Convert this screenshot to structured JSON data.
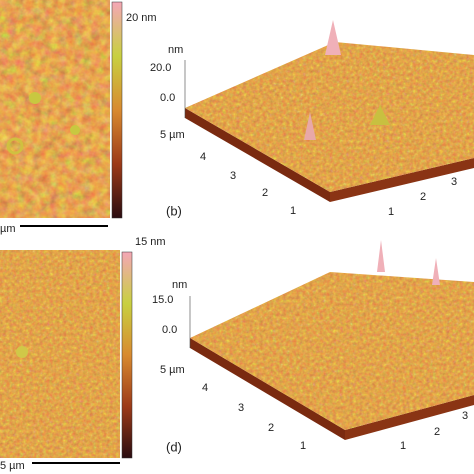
{
  "panels": [
    {
      "colorbar_label": "20 nm",
      "scale_bar_label": "µm",
      "z_unit": "nm",
      "z_ticks": [
        "20.0",
        "0.0"
      ],
      "y_axis_labels": [
        "5 µm",
        "4",
        "3",
        "2",
        "1"
      ],
      "x_axis_labels": [
        "1",
        "2",
        "3"
      ],
      "panel_label": "(b)"
    },
    {
      "colorbar_label": "15 nm",
      "scale_bar_label": "5 µm",
      "z_unit": "nm",
      "z_ticks": [
        "15.0",
        "0.0"
      ],
      "y_axis_labels": [
        "5 µm",
        "4",
        "3",
        "2",
        "1"
      ],
      "x_axis_labels": [
        "1",
        "2",
        "3"
      ],
      "panel_label": "(d)"
    }
  ]
}
